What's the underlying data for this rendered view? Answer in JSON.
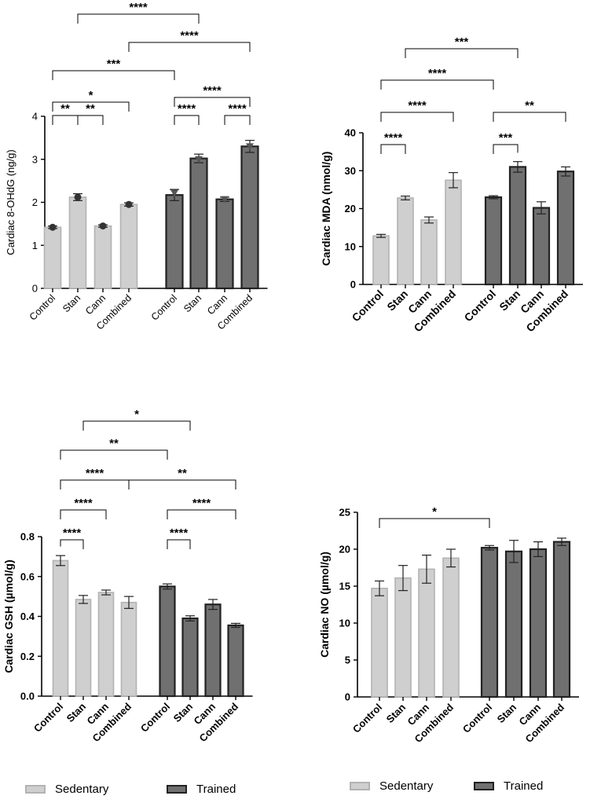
{
  "colors": {
    "sedentary_fill": "#cfcfcf",
    "sedentary_stroke": "#b3b3b3",
    "trained_fill": "#707070",
    "trained_stroke": "#222222",
    "axis": "#000000",
    "bracket": "#000000"
  },
  "legend_a": {
    "sedentary_label": "Sedentary",
    "trained_label": "Trained"
  },
  "legend_b": {
    "sedentary_label": "Sedentary",
    "trained_label": "Trained"
  },
  "chart_data": [
    {
      "type": "bar",
      "ylabel": "Cardiac 8-OHdG (ng/g)",
      "ylim": [
        0,
        4
      ],
      "yticks": [
        0,
        1,
        2,
        3,
        4
      ],
      "categories": [
        "Control",
        "Stan",
        "Cann",
        "Combined",
        "Control",
        "Stan",
        "Cann",
        "Combined"
      ],
      "groups": [
        "Sedentary",
        "Sedentary",
        "Sedentary",
        "Sedentary",
        "Trained",
        "Trained",
        "Trained",
        "Trained"
      ],
      "values": [
        1.42,
        2.12,
        1.45,
        1.95,
        2.17,
        3.02,
        2.07,
        3.3
      ],
      "errors": [
        0.03,
        0.08,
        0.03,
        0.04,
        0.13,
        0.1,
        0.05,
        0.14
      ],
      "points": [
        1.42,
        2.12,
        1.45,
        1.95,
        2.22,
        3.0,
        2.07,
        3.3
      ],
      "comparisons": [
        {
          "from": 0,
          "to": 1,
          "label": "**"
        },
        {
          "from": 1,
          "to": 2,
          "label": "**"
        },
        {
          "from": 0,
          "to": 3,
          "label": "*"
        },
        {
          "from": 4,
          "to": 5,
          "label": "****"
        },
        {
          "from": 6,
          "to": 7,
          "label": "****"
        },
        {
          "from": 4,
          "to": 7,
          "label": "****"
        },
        {
          "from": 0,
          "to": 4,
          "label": "***"
        },
        {
          "from": 3,
          "to": 7,
          "label": "****"
        },
        {
          "from": 1,
          "to": 5,
          "label": "****"
        }
      ]
    },
    {
      "type": "bar",
      "ylabel": "Cardiac  MDA  (nmol/g)",
      "ylim": [
        0,
        40
      ],
      "yticks": [
        0,
        10,
        20,
        30,
        40
      ],
      "categories": [
        "Control",
        "Stan",
        "Cann",
        "Combined",
        "Control",
        "Stan",
        "Cann",
        "Combined"
      ],
      "groups": [
        "Sedentary",
        "Sedentary",
        "Sedentary",
        "Sedentary",
        "Trained",
        "Trained",
        "Trained",
        "Trained"
      ],
      "values": [
        12.8,
        22.8,
        17.0,
        27.5,
        23.0,
        31.0,
        20.2,
        29.8
      ],
      "errors": [
        0.4,
        0.5,
        0.8,
        2.0,
        0.4,
        1.4,
        1.6,
        1.2
      ],
      "comparisons": [
        {
          "from": 0,
          "to": 1,
          "label": "****"
        },
        {
          "from": 4,
          "to": 5,
          "label": "***"
        },
        {
          "from": 0,
          "to": 3,
          "label": "****"
        },
        {
          "from": 4,
          "to": 7,
          "label": "**"
        },
        {
          "from": 0,
          "to": 4,
          "label": "****"
        },
        {
          "from": 1,
          "to": 5,
          "label": "***"
        }
      ]
    },
    {
      "type": "bar",
      "ylabel": "Cardiac GSH (µmol/g)",
      "ylim": [
        0,
        0.8
      ],
      "yticks": [
        0.0,
        0.2,
        0.4,
        0.6,
        0.8
      ],
      "categories": [
        "Control",
        "Stan",
        "Cann",
        "Combined",
        "Control",
        "Stan",
        "Cann",
        "Combined"
      ],
      "groups": [
        "Sedentary",
        "Sedentary",
        "Sedentary",
        "Sedentary",
        "Trained",
        "Trained",
        "Trained",
        "Trained"
      ],
      "values": [
        0.68,
        0.485,
        0.52,
        0.47,
        0.55,
        0.39,
        0.46,
        0.355
      ],
      "errors": [
        0.025,
        0.02,
        0.012,
        0.03,
        0.013,
        0.013,
        0.025,
        0.01
      ],
      "comparisons": [
        {
          "from": 0,
          "to": 1,
          "label": "****"
        },
        {
          "from": 4,
          "to": 5,
          "label": "****"
        },
        {
          "from": 0,
          "to": 2,
          "label": "****"
        },
        {
          "from": 4,
          "to": 7,
          "label": "****"
        },
        {
          "from": 0,
          "to": 3,
          "label": "****"
        },
        {
          "from": 3,
          "to": 7,
          "label": "**"
        },
        {
          "from": 0,
          "to": 4,
          "label": "**"
        },
        {
          "from": 1,
          "to": 5,
          "label": "*"
        }
      ]
    },
    {
      "type": "bar",
      "ylabel": "Cardiac NO (µmol/g)",
      "ylim": [
        0,
        25
      ],
      "yticks": [
        0,
        5,
        10,
        15,
        20,
        25
      ],
      "categories": [
        "Control",
        "Stan",
        "Cann",
        "Combined",
        "Control",
        "Stan",
        "Cann",
        "Combined"
      ],
      "groups": [
        "Sedentary",
        "Sedentary",
        "Sedentary",
        "Sedentary",
        "Trained",
        "Trained",
        "Trained",
        "Trained"
      ],
      "values": [
        14.7,
        16.1,
        17.3,
        18.8,
        20.2,
        19.7,
        20.0,
        21.0
      ],
      "errors": [
        1.0,
        1.7,
        1.9,
        1.2,
        0.3,
        1.5,
        1.0,
        0.5
      ],
      "comparisons": [
        {
          "from": 0,
          "to": 4,
          "label": "*"
        }
      ]
    }
  ]
}
